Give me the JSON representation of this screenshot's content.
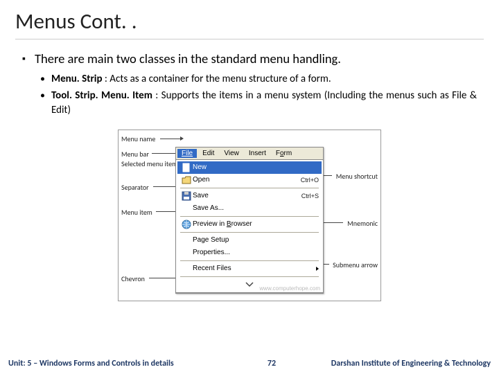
{
  "title": "Menus Cont. .",
  "lvl1_bullet": "▪",
  "lvl2_bullet": "•",
  "intro": "There are main two classes in the standard menu handling.",
  "items": [
    {
      "bold": "Menu. Strip",
      "rest": " : Acts as a container for the menu structure of a form."
    },
    {
      "bold": "Tool. Strip. Menu. Item",
      "rest": " : Supports the items in a menu system (Including the menus such as File & Edit)"
    }
  ],
  "diagram": {
    "labels": {
      "menu_name": "Menu name",
      "menu_bar": "Menu bar",
      "selected": "Selected menu item",
      "separator": "Separator",
      "menu_item": "Menu item",
      "chevron": "Chevron",
      "shortcut": "Menu shortcut",
      "mnemonic": "Mnemonic",
      "submenu": "Submenu arrow"
    },
    "menubar": [
      "File",
      "Edit",
      "View",
      "Insert",
      "Form"
    ],
    "dropdown": [
      {
        "type": "row",
        "sel": true,
        "icon": "file-new",
        "label": "New",
        "sc": ""
      },
      {
        "type": "row",
        "sel": false,
        "icon": "folder",
        "label": "Open",
        "sc": "Ctrl+O"
      },
      {
        "type": "sep"
      },
      {
        "type": "row",
        "sel": false,
        "icon": "disk",
        "label": "Save",
        "sc": "Ctrl+S"
      },
      {
        "type": "row",
        "sel": false,
        "icon": "",
        "label": "Save As...",
        "sc": ""
      },
      {
        "type": "sep"
      },
      {
        "type": "row",
        "sel": false,
        "icon": "globe",
        "label": "Preview in Browser",
        "sc": "",
        "mn": "B"
      },
      {
        "type": "sep"
      },
      {
        "type": "row",
        "sel": false,
        "icon": "",
        "label": "Page Setup",
        "sc": ""
      },
      {
        "type": "row",
        "sel": false,
        "icon": "",
        "label": "Properties...",
        "sc": ""
      },
      {
        "type": "sep"
      },
      {
        "type": "row",
        "sel": false,
        "icon": "",
        "label": "Recent Files",
        "sc": "",
        "arrow": true
      },
      {
        "type": "sep"
      },
      {
        "type": "chevron"
      }
    ],
    "watermark": "www.computerhope.com",
    "colors": {
      "highlight": "#316ac5",
      "panel": "#ece9d8",
      "sep": "#aca899"
    }
  },
  "footer": {
    "left": "Unit: 5 – Windows Forms and Controls in details",
    "page": "72",
    "right": "Darshan Institute of Engineering & Technology"
  }
}
